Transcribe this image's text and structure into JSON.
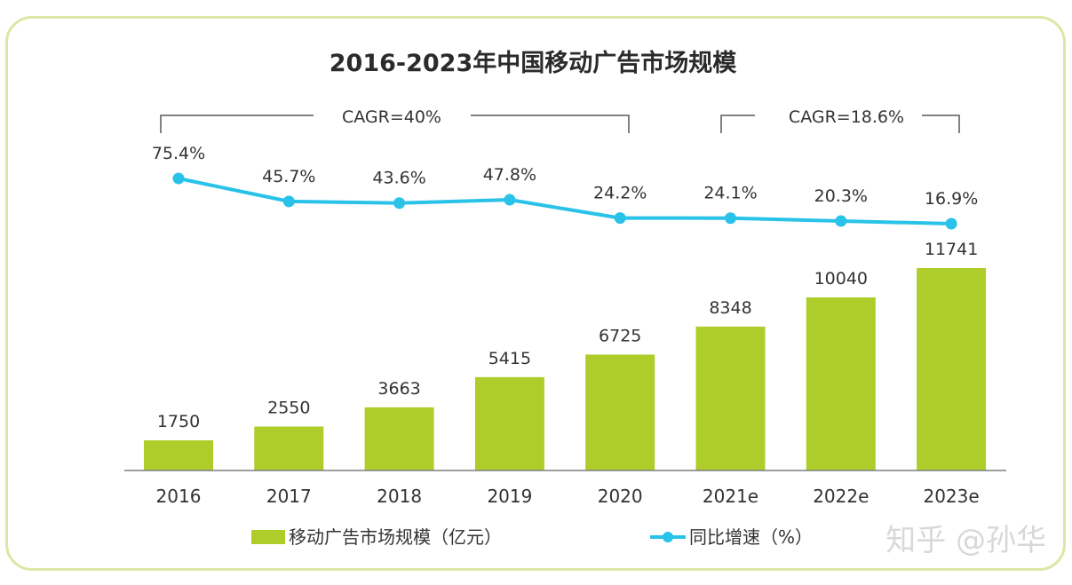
{
  "watermark": "知乎 @孙华",
  "colors": {
    "bar": "#aecd2b",
    "line": "#29c2e8",
    "border": "#dbe7a4",
    "axis": "#7f7f7f"
  },
  "chart_data": {
    "type": "bar+line",
    "title": "2016-2023年中国移动广告市场规模",
    "categories": [
      "2016",
      "2017",
      "2018",
      "2019",
      "2020",
      "2021e",
      "2022e",
      "2023e"
    ],
    "series": [
      {
        "name": "移动广告市场规模（亿元）",
        "type": "bar",
        "values": [
          1750,
          2550,
          3663,
          5415,
          6725,
          8348,
          10040,
          11741
        ]
      },
      {
        "name": "同比增速（%）",
        "type": "line",
        "values": [
          75.4,
          45.7,
          43.6,
          47.8,
          24.2,
          24.1,
          20.3,
          16.9
        ],
        "labels": [
          "75.4%",
          "45.7%",
          "43.6%",
          "47.8%",
          "24.2%",
          "24.1%",
          "20.3%",
          "16.9%"
        ]
      }
    ],
    "annotations": [
      {
        "text": "CAGR=40%",
        "from": "2016",
        "to": "2020"
      },
      {
        "text": "CAGR=18.6%",
        "from": "2021e",
        "to": "2023e"
      }
    ],
    "legend": [
      "移动广告市场规模（亿元）",
      "同比增速（%）"
    ],
    "legend_position": "bottom",
    "ylim": [
      0,
      11741
    ]
  }
}
